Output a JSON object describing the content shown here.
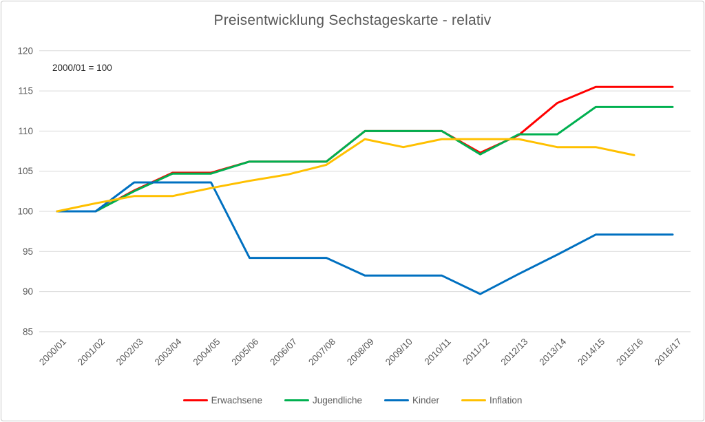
{
  "chart": {
    "title": "Preisentwicklung Sechstageskarte - relativ",
    "note": "2000/01 = 100"
  },
  "chart_data": {
    "type": "line",
    "title": "Preisentwicklung Sechstageskarte - relativ",
    "annotation": "2000/01 = 100",
    "categories": [
      "2000/01",
      "2001/02",
      "2002/03",
      "2003/04",
      "2004/05",
      "2005/06",
      "2006/07",
      "2007/08",
      "2008/09",
      "2009/10",
      "2010/11",
      "2011/12",
      "2012/13",
      "2013/14",
      "2014/15",
      "2015/16",
      "2016/17"
    ],
    "series": [
      {
        "name": "Erwachsene",
        "color": "#ff0000",
        "values": [
          100,
          100,
          102.6,
          104.8,
          104.8,
          106.2,
          106.2,
          106.2,
          110,
          110,
          110,
          107.3,
          109.5,
          113.5,
          115.5,
          115.5,
          115.5
        ]
      },
      {
        "name": "Jugendliche",
        "color": "#00b050",
        "values": [
          100,
          100,
          102.5,
          104.7,
          104.7,
          106.2,
          106.2,
          106.2,
          110,
          110,
          110,
          107.1,
          109.6,
          109.6,
          113,
          113,
          113
        ]
      },
      {
        "name": "Kinder",
        "color": "#0070c0",
        "values": [
          100,
          100,
          103.6,
          103.6,
          103.6,
          94.2,
          94.2,
          94.2,
          92,
          92,
          92,
          89.7,
          92.2,
          94.6,
          97.1,
          97.1,
          97.1
        ]
      },
      {
        "name": "Inflation",
        "color": "#ffc000",
        "values": [
          100,
          101,
          101.9,
          101.9,
          102.9,
          103.8,
          104.6,
          105.8,
          109,
          108,
          109,
          109,
          109,
          108,
          108,
          107
        ]
      }
    ],
    "ylim": [
      85,
      120
    ],
    "ytick_step": 5,
    "yticks": [
      85,
      90,
      95,
      100,
      105,
      110,
      115,
      120
    ],
    "grid": "horizontal",
    "legend_position": "bottom",
    "xlabel": "",
    "ylabel": "",
    "x_label_rotation_deg": -45,
    "grid_color": "#d9d9d9",
    "tick_label_color": "#595959",
    "title_color": "#595959"
  }
}
